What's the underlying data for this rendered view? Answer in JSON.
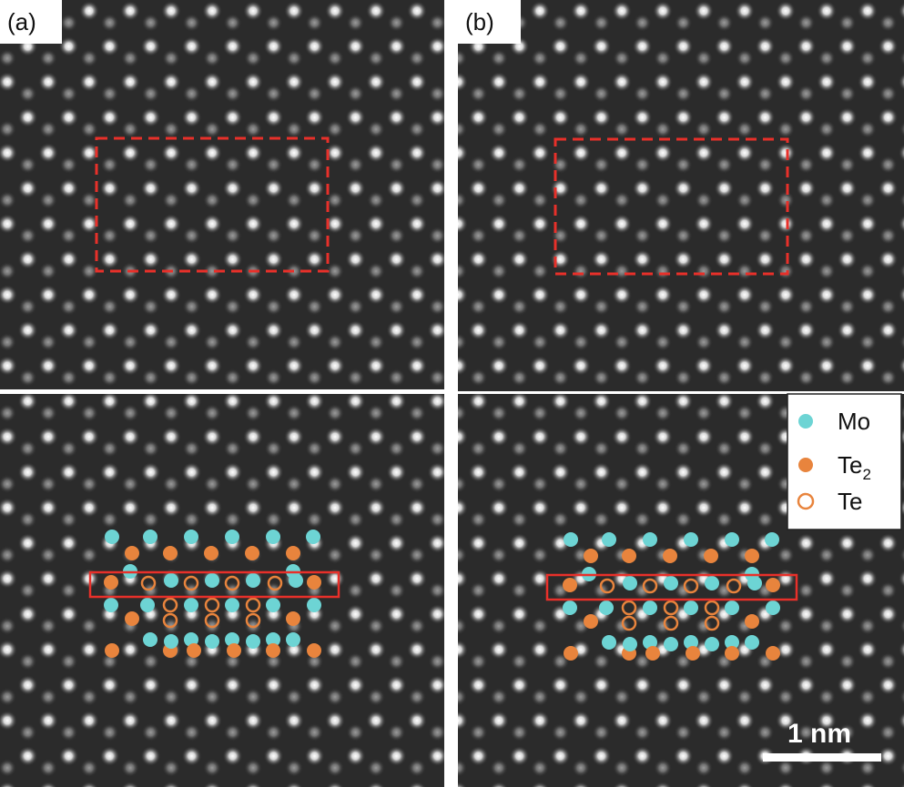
{
  "panels": [
    {
      "label": "(a)"
    },
    {
      "label": "(b)"
    }
  ],
  "legend": [
    {
      "label": "Mo"
    },
    {
      "label": "Te",
      "subscript": "2"
    },
    {
      "label": "Te"
    }
  ],
  "scale_bar": "1 nm"
}
